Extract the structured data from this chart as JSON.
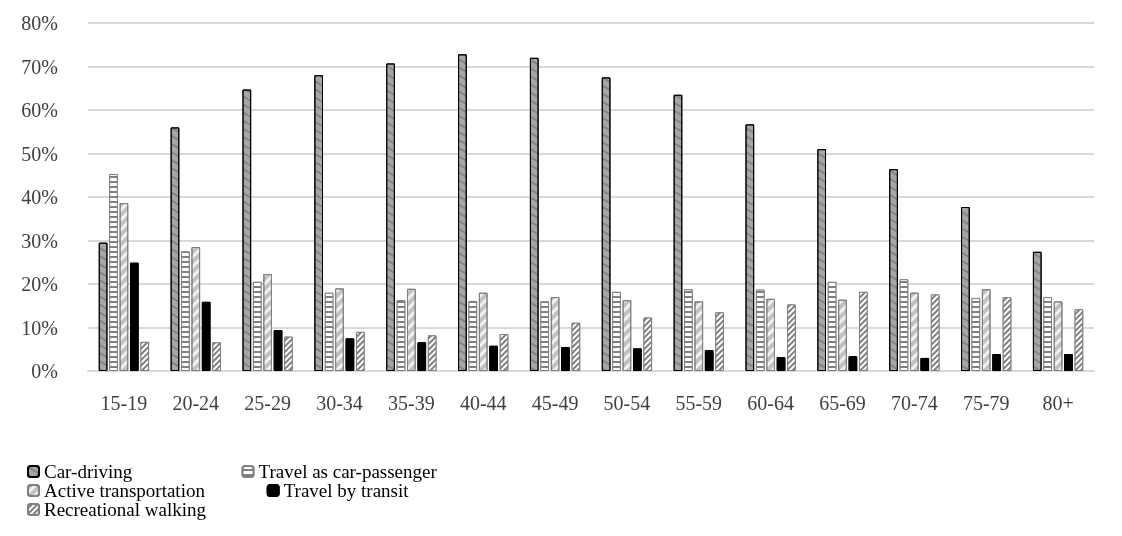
{
  "chart_data": {
    "type": "bar",
    "categories": [
      "15-19",
      "20-24",
      "25-29",
      "30-34",
      "35-39",
      "40-44",
      "45-49",
      "50-54",
      "55-59",
      "60-64",
      "65-69",
      "70-74",
      "75-79",
      "80+"
    ],
    "series": [
      {
        "name": "Car-driving",
        "color": "#a6a6a6",
        "values": [
          29.5,
          56,
          64.7,
          68,
          70.7,
          72.8,
          72,
          67.5,
          63.5,
          56.7,
          51,
          46.4,
          37.7,
          27.4
        ]
      },
      {
        "name": "Travel as car-passenger",
        "color": "#808080",
        "values": [
          45.3,
          27.5,
          20.5,
          18,
          16.3,
          16.1,
          16,
          18.2,
          18.8,
          18.7,
          20.5,
          21.1,
          16.8,
          17
        ]
      },
      {
        "name": "Active transportation",
        "color": "#f2f2f2",
        "values": [
          38.6,
          28.5,
          22.3,
          19,
          18.9,
          18,
          17,
          16.3,
          16,
          16.6,
          16.4,
          18,
          18.8,
          16
        ]
      },
      {
        "name": "Travel by transit",
        "color": "#000000",
        "values": [
          24.9,
          15.9,
          9.4,
          7.5,
          6.6,
          5.8,
          5.5,
          5.2,
          4.8,
          3.2,
          3.4,
          3,
          3.9,
          3.9
        ]
      },
      {
        "name": "Recreational walking",
        "color": "#808080",
        "values": [
          6.7,
          6.6,
          7.9,
          9,
          8.2,
          8.5,
          11.1,
          12.3,
          13.5,
          15.3,
          18.2,
          17.6,
          17,
          14.2
        ]
      }
    ],
    "ylim": [
      0,
      80
    ],
    "yticks": [
      {
        "value": 0,
        "label": "0%"
      },
      {
        "value": 10,
        "label": "10%"
      },
      {
        "value": 20,
        "label": "20%"
      },
      {
        "value": 30,
        "label": "30%"
      },
      {
        "value": 40,
        "label": "40%"
      },
      {
        "value": 50,
        "label": "50%"
      },
      {
        "value": 60,
        "label": "60%"
      },
      {
        "value": 70,
        "label": "70%"
      },
      {
        "value": 80,
        "label": "80%"
      }
    ],
    "grid": "y",
    "legend": "bottom"
  }
}
